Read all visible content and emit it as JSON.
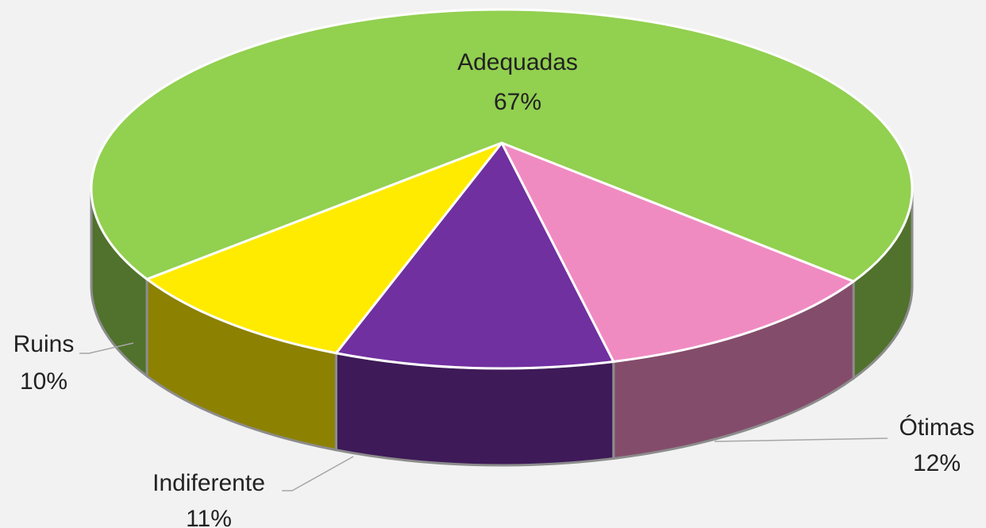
{
  "chart_data": {
    "type": "pie",
    "categories": [
      "Adequadas",
      "Ótimas",
      "Indiferente",
      "Ruins"
    ],
    "values": [
      67,
      12,
      11,
      10
    ],
    "value_labels": [
      "67%",
      "12%",
      "11%",
      "10%"
    ],
    "colors": [
      "#92d050",
      "#f08bc2",
      "#7030a0",
      "#ffeb00"
    ]
  }
}
